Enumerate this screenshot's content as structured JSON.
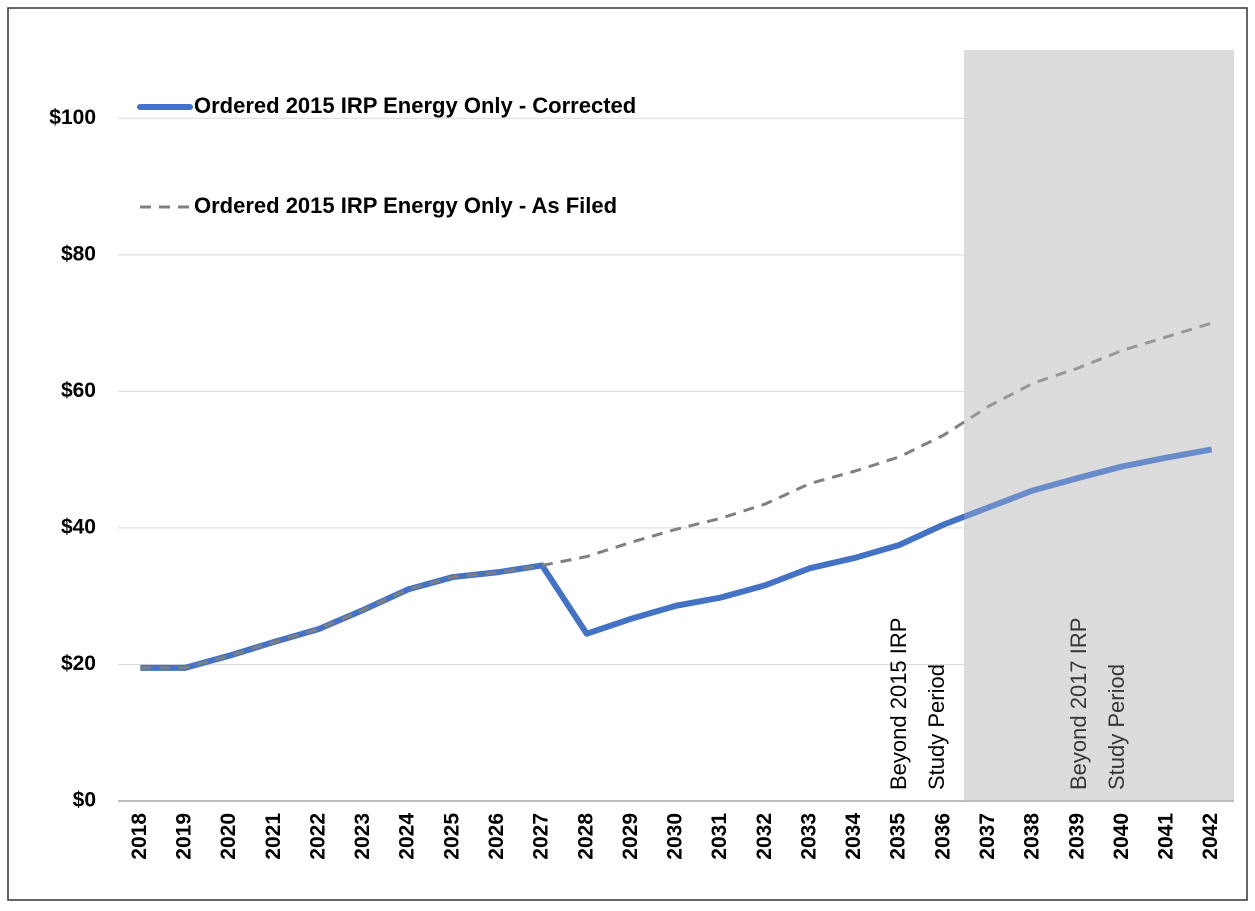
{
  "chart_data": {
    "type": "line",
    "categories": [
      "2018",
      "2019",
      "2020",
      "2021",
      "2022",
      "2023",
      "2024",
      "2025",
      "2026",
      "2027",
      "2028",
      "2029",
      "2030",
      "2031",
      "2032",
      "2033",
      "2034",
      "2035",
      "2036",
      "2037",
      "2038",
      "2039",
      "2040",
      "2041",
      "2042"
    ],
    "series": [
      {
        "name": "Ordered 2015 IRP Energy Only - Corrected",
        "color": "#4472c4",
        "dash": false,
        "values": [
          19.5,
          19.5,
          21.3,
          23.3,
          25.2,
          28,
          31,
          32.8,
          33.5,
          34.5,
          24.5,
          26.7,
          28.6,
          29.8,
          31.6,
          34.1,
          35.6,
          37.5,
          40.5,
          43,
          45.5,
          47.3,
          49,
          50.3,
          51.5
        ]
      },
      {
        "name": "Ordered 2015 IRP Energy Only - As Filed",
        "color": "#808080",
        "dash": true,
        "values": [
          19.5,
          19.5,
          21.3,
          23.3,
          25.2,
          28,
          31,
          32.8,
          33.5,
          34.5,
          35.8,
          37.9,
          39.8,
          41.4,
          43.5,
          46.5,
          48.3,
          50.4,
          53.6,
          57.8,
          61.2,
          63.4,
          66,
          68,
          70
        ]
      }
    ],
    "ylim": [
      0,
      110
    ],
    "yticks": [
      {
        "value": 0,
        "label": "$0"
      },
      {
        "value": 20,
        "label": "$20"
      },
      {
        "value": 40,
        "label": "$40"
      },
      {
        "value": 60,
        "label": "$60"
      },
      {
        "value": 80,
        "label": "$80"
      },
      {
        "value": 100,
        "label": "$100"
      }
    ],
    "grid": true,
    "legend": "upper left",
    "annotations": [
      [
        "Beyond 2015 IRP",
        "Study Period"
      ],
      [
        "Beyond 2017 IRP",
        "Study Period"
      ]
    ]
  }
}
